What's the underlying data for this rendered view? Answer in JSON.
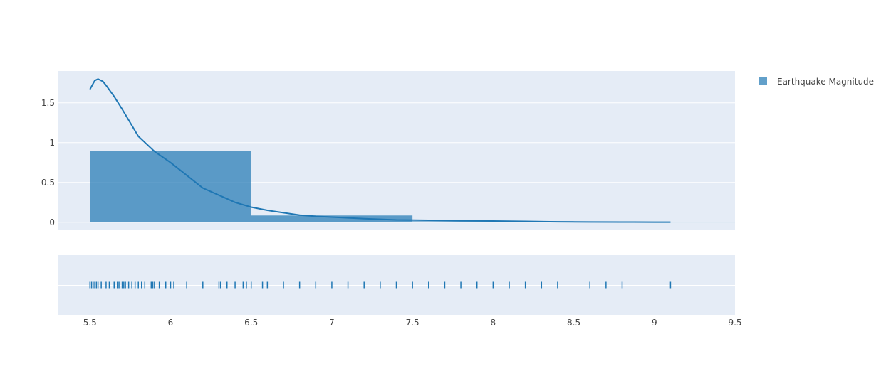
{
  "chart_data": {
    "type": "histogram-density-rug",
    "legend": {
      "label": "Earthquake Magnitude",
      "placement": "top-right"
    },
    "colors": {
      "series": "#1f77b4",
      "plot_bg": "#e5ecf6",
      "grid": "#ffffff",
      "text": "#444444"
    },
    "grid": true,
    "xlim": [
      5.3,
      9.5
    ],
    "ylim": [
      -0.1,
      1.9
    ],
    "x_ticks": [
      5.5,
      6,
      6.5,
      7,
      7.5,
      8,
      8.5,
      9,
      9.5
    ],
    "x_tick_labels": [
      "5.5",
      "6",
      "6.5",
      "7",
      "7.5",
      "8",
      "8.5",
      "9",
      "9.5"
    ],
    "y_ticks": [
      0,
      0.5,
      1,
      1.5
    ],
    "y_tick_labels": [
      "0",
      "0.5",
      "1",
      "1.5"
    ],
    "histogram": {
      "bins": [
        {
          "start": 5.5,
          "end": 6.5,
          "value": 0.9
        },
        {
          "start": 6.5,
          "end": 7.5,
          "value": 0.085
        },
        {
          "start": 7.5,
          "end": 8.5,
          "value": 0.013
        },
        {
          "start": 8.5,
          "end": 9.5,
          "value": 0.002
        }
      ]
    },
    "density": {
      "x": [
        5.5,
        5.53,
        5.55,
        5.58,
        5.6,
        5.65,
        5.7,
        5.8,
        5.9,
        6.0,
        6.1,
        6.2,
        6.3,
        6.4,
        6.5,
        6.6,
        6.7,
        6.8,
        6.9,
        7.0,
        7.2,
        7.4,
        7.6,
        7.8,
        8.0,
        8.2,
        8.4,
        8.6,
        8.8,
        9.0,
        9.1
      ],
      "y": [
        1.67,
        1.78,
        1.8,
        1.77,
        1.72,
        1.58,
        1.42,
        1.08,
        0.89,
        0.75,
        0.59,
        0.43,
        0.34,
        0.25,
        0.19,
        0.15,
        0.12,
        0.09,
        0.075,
        0.065,
        0.045,
        0.03,
        0.025,
        0.02,
        0.016,
        0.012,
        0.006,
        0.004,
        0.003,
        0.002,
        0.002
      ]
    },
    "rug": {
      "x": [
        5.5,
        5.51,
        5.52,
        5.53,
        5.54,
        5.55,
        5.57,
        5.6,
        5.62,
        5.65,
        5.67,
        5.68,
        5.7,
        5.71,
        5.72,
        5.74,
        5.76,
        5.78,
        5.8,
        5.82,
        5.84,
        5.88,
        5.89,
        5.9,
        5.93,
        5.97,
        6.0,
        6.02,
        6.1,
        6.2,
        6.3,
        6.31,
        6.35,
        6.4,
        6.45,
        6.47,
        6.5,
        6.57,
        6.6,
        6.7,
        6.8,
        6.9,
        7.0,
        7.1,
        7.2,
        7.3,
        7.4,
        7.5,
        7.6,
        7.7,
        7.8,
        7.9,
        8.0,
        8.1,
        8.2,
        8.3,
        8.4,
        8.6,
        8.7,
        8.8,
        9.1
      ]
    }
  }
}
